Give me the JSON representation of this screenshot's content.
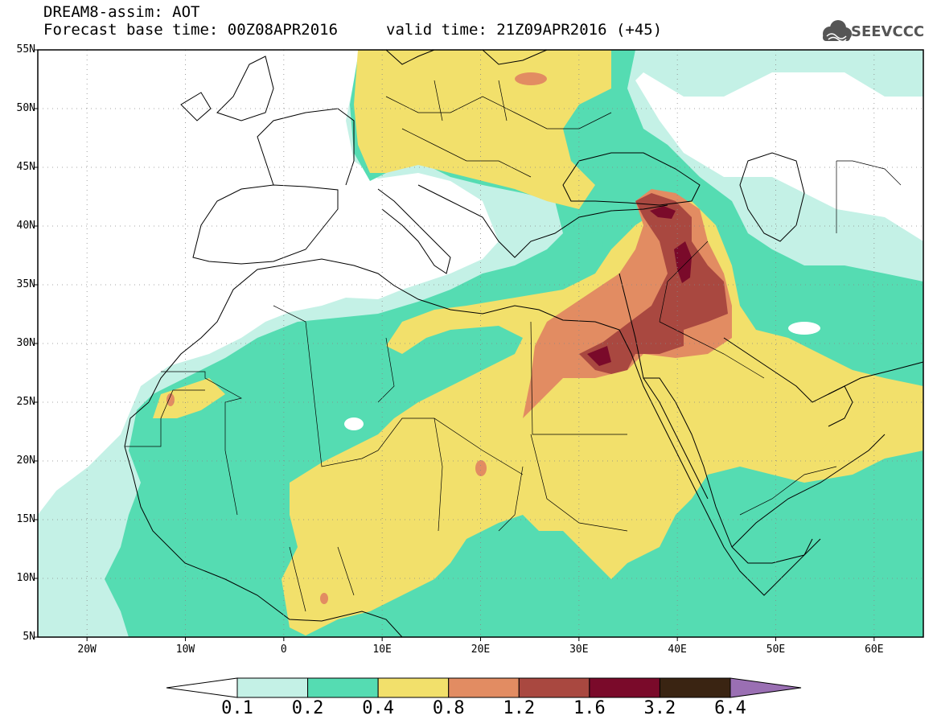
{
  "title": {
    "line1": "DREAM8-assim: AOT",
    "line2": "Forecast base time: 00Z08APR2016",
    "valid": "valid time: 21Z09APR2016 (+45)"
  },
  "logo": {
    "text": "SEEVCCC",
    "icon": "cloud-logo-icon",
    "color": "#555555"
  },
  "map": {
    "extent": {
      "lon_min": -25,
      "lon_max": 65,
      "lat_min": 5,
      "lat_max": 55
    },
    "lat_labels": [
      "55N",
      "50N",
      "45N",
      "40N",
      "35N",
      "30N",
      "25N",
      "20N",
      "15N",
      "10N",
      "5N"
    ],
    "lat_values": [
      55,
      50,
      45,
      40,
      35,
      30,
      25,
      20,
      15,
      10,
      5
    ],
    "lon_labels": [
      "20W",
      "10W",
      "0",
      "10E",
      "20E",
      "30E",
      "40E",
      "50E",
      "60E"
    ],
    "lon_values": [
      -20,
      -10,
      0,
      10,
      20,
      30,
      40,
      50,
      60
    ],
    "grid": "dotted"
  },
  "colorbar": {
    "labels": [
      "0.1",
      "0.2",
      "0.4",
      "0.8",
      "1.2",
      "1.6",
      "3.2",
      "6.4"
    ],
    "colors": [
      "#ffffff",
      "#c4f1e6",
      "#55dcb2",
      "#f2e06b",
      "#e28c62",
      "#a94840",
      "#7a0a2a",
      "#3a2412",
      "#9a6fb3"
    ]
  }
}
